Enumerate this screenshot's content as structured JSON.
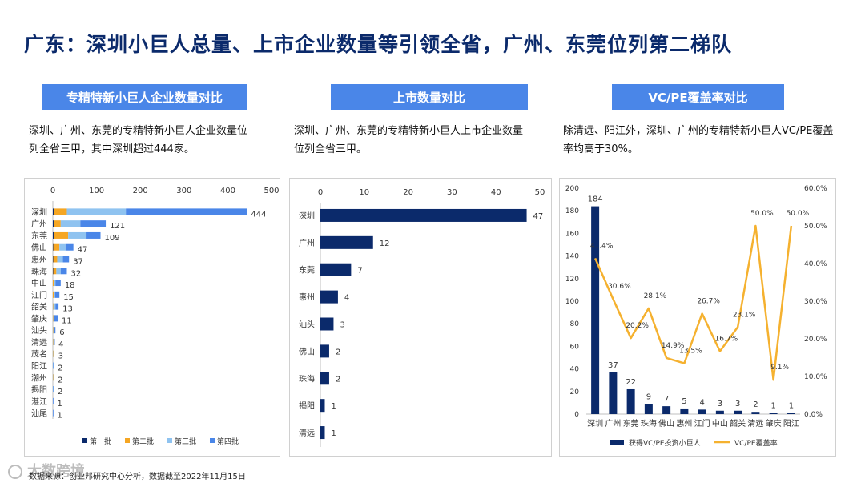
{
  "page": {
    "title": "广东：深圳小巨人总量、上市企业数量等引领全省，广州、东莞位列第二梯队",
    "footer": "数据来源：创业邦研究中心分析，数据截至2022年11月15日",
    "watermark": "大数跨境"
  },
  "tags": [
    "专精特新小巨人企业数量对比",
    "上市数量对比",
    "VC/PE覆盖率对比"
  ],
  "descriptions": [
    [
      "深圳、广州、东莞的专精特新小巨人企业数量位",
      "列全省三甲，其中深圳超过444家。"
    ],
    [
      "深圳、广州、东莞的专精特新小巨人上市企业数量",
      "位列全省三甲。"
    ],
    [
      "除清远、阳江外，深圳、广州的专精特新小巨人VC/PE覆盖",
      "率均高于30%。"
    ]
  ],
  "colors": {
    "navy": "#0b2a6b",
    "orange": "#f5a623",
    "light_blue": "#8fc3f0",
    "blue": "#4a86e8",
    "line": "#f5b12f",
    "tag_bg": "#4a86e8"
  },
  "chart_data": [
    {
      "type": "bar",
      "orientation": "horizontal",
      "stacked": true,
      "categories": [
        "深圳",
        "广州",
        "东莞",
        "佛山",
        "惠州",
        "珠海",
        "中山",
        "江门",
        "韶关",
        "肇庆",
        "汕头",
        "清远",
        "茂名",
        "阳江",
        "潮州",
        "揭阳",
        "湛江",
        "汕尾"
      ],
      "series": [
        {
          "name": "第一批",
          "values": [
            2,
            3,
            2,
            1,
            1,
            1,
            0,
            0,
            0,
            0,
            0,
            0,
            0,
            0,
            0,
            0,
            0,
            0
          ]
        },
        {
          "name": "第二批",
          "values": [
            30,
            15,
            33,
            14,
            9,
            7,
            2,
            2,
            1,
            1,
            1,
            1,
            1,
            0,
            1,
            0,
            0,
            0
          ]
        },
        {
          "name": "第三批",
          "values": [
            135,
            45,
            42,
            14,
            13,
            10,
            4,
            3,
            5,
            2,
            2,
            2,
            1,
            1,
            1,
            1,
            0,
            0
          ]
        },
        {
          "name": "第四批",
          "values": [
            277,
            58,
            32,
            18,
            14,
            14,
            12,
            10,
            7,
            8,
            3,
            1,
            1,
            1,
            0,
            1,
            1,
            1
          ]
        }
      ],
      "totals": [
        444,
        121,
        109,
        47,
        37,
        32,
        18,
        15,
        13,
        11,
        6,
        4,
        3,
        2,
        2,
        2,
        1,
        1
      ],
      "xlim": [
        0,
        500
      ],
      "xticks": [
        0,
        100,
        200,
        300,
        400,
        500
      ],
      "legend": "bottom"
    },
    {
      "type": "bar",
      "orientation": "horizontal",
      "categories": [
        "深圳",
        "广州",
        "东莞",
        "惠州",
        "汕头",
        "佛山",
        "珠海",
        "揭阳",
        "清远"
      ],
      "values": [
        47,
        12,
        7,
        4,
        3,
        2,
        2,
        1,
        1
      ],
      "xlim": [
        0,
        50
      ],
      "xticks": [
        0,
        10,
        20,
        30,
        40,
        50
      ]
    },
    {
      "type": "bar",
      "combo": "bar+line",
      "categories": [
        "深圳",
        "广州",
        "东莞",
        "珠海",
        "佛山",
        "惠州",
        "江门",
        "中山",
        "韶关",
        "清远",
        "肇庆",
        "阳江"
      ],
      "series": [
        {
          "name": "获得VC/PE投资小巨人",
          "type": "bar",
          "axis": "left",
          "values": [
            184,
            37,
            22,
            9,
            7,
            5,
            4,
            3,
            3,
            2,
            1,
            1
          ]
        },
        {
          "name": "VC/PE覆盖率",
          "type": "line",
          "axis": "right",
          "values": [
            41.4,
            30.6,
            20.2,
            28.1,
            14.9,
            13.5,
            26.7,
            16.7,
            23.1,
            50.0,
            9.1,
            50.0
          ],
          "labels": [
            "41.4%",
            "30.6%",
            "20.2%",
            "28.1%",
            "14.9%",
            "13.5%",
            "26.7%",
            "16.7%",
            "23.1%",
            "50.0%",
            "9.1%",
            "50.0%"
          ]
        }
      ],
      "ylim": [
        0,
        200
      ],
      "yticks": [
        0,
        20,
        40,
        60,
        80,
        100,
        120,
        140,
        160,
        180,
        200
      ],
      "y2lim": [
        0,
        60
      ],
      "y2ticks": [
        "0.0%",
        "10.0%",
        "20.0%",
        "30.0%",
        "40.0%",
        "50.0%",
        "60.0%"
      ],
      "legend": "bottom"
    }
  ]
}
